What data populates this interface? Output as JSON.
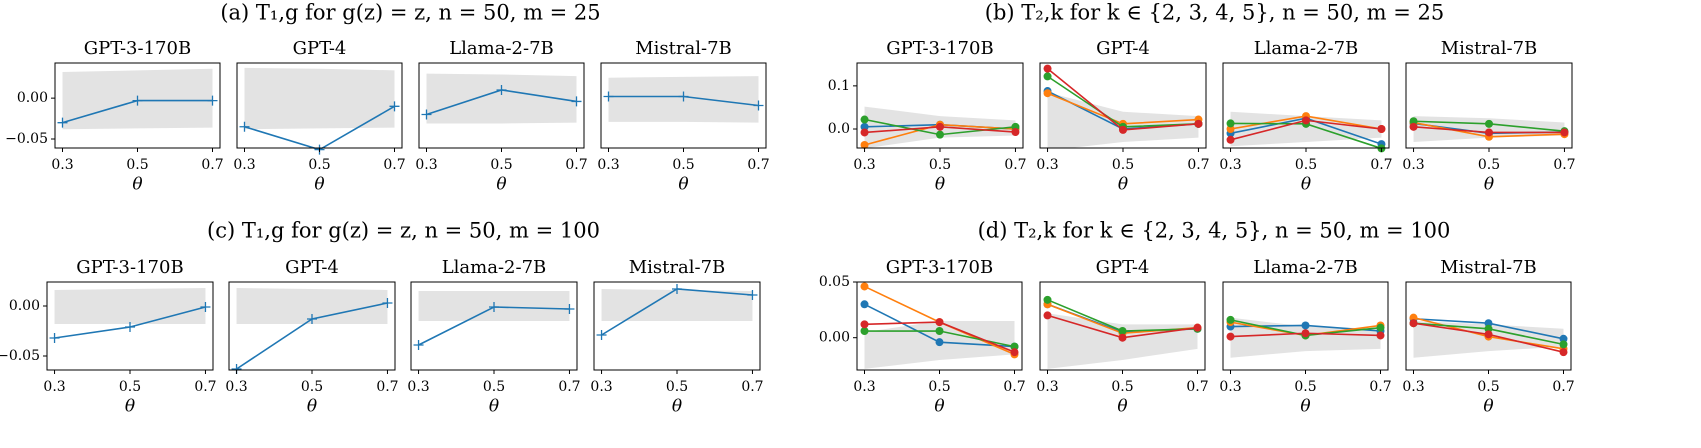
{
  "panel_titles": [
    "(a) T₁,g for g(z) = z, n = 50, m = 25",
    "(b) T₂,k for k ∈ {2, 3, 4, 5}, n = 50, m = 25",
    "(c) T₁,g for g(z) = z, n = 50, m = 100",
    "(d) T₂,k for k ∈ {2, 3, 4, 5}, n = 50, m = 100"
  ],
  "chart_data": [
    {
      "type": "line",
      "title": "GPT-3-170B",
      "marker": "+",
      "x": [
        0.3,
        0.5,
        0.7
      ],
      "xlim": [
        0.28,
        0.72
      ],
      "xticks": [
        0.3,
        0.5,
        0.7
      ],
      "xlabel": "θ",
      "ylim": [
        -0.061,
        0.043
      ],
      "yticks": [
        {
          "value": -0.05,
          "label": "−0.05"
        },
        {
          "value": 0,
          "label": "0.00"
        }
      ],
      "band_upper": [
        0.032,
        0.034,
        0.036
      ],
      "band_lower": [
        -0.038,
        -0.037,
        -0.036
      ],
      "series": [
        {
          "color": "#1f77b4",
          "values": [
            -0.03,
            -0.003,
            -0.003
          ]
        }
      ]
    },
    {
      "type": "line",
      "title": "GPT-4",
      "marker": "+",
      "x": [
        0.3,
        0.5,
        0.7
      ],
      "xlim": [
        0.28,
        0.72
      ],
      "ylim": [
        -0.061,
        0.043
      ],
      "xticks": [
        0.3,
        0.5,
        0.7
      ],
      "xlabel": "θ",
      "band_upper": [
        0.037,
        0.036,
        0.034
      ],
      "band_lower": [
        -0.038,
        -0.037,
        -0.036
      ],
      "series": [
        {
          "color": "#1f77b4",
          "values": [
            -0.035,
            -0.063,
            -0.01
          ]
        }
      ]
    },
    {
      "type": "line",
      "title": "Llama-2-7B",
      "marker": "+",
      "x": [
        0.3,
        0.5,
        0.7
      ],
      "xlim": [
        0.28,
        0.72
      ],
      "ylim": [
        -0.061,
        0.043
      ],
      "xticks": [
        0.3,
        0.5,
        0.7
      ],
      "xlabel": "θ",
      "band_upper": [
        0.03,
        0.029,
        0.027
      ],
      "band_lower": [
        -0.031,
        -0.031,
        -0.03
      ],
      "series": [
        {
          "color": "#1f77b4",
          "values": [
            -0.02,
            0.01,
            -0.004
          ]
        }
      ]
    },
    {
      "type": "line",
      "title": "Mistral-7B",
      "marker": "+",
      "x": [
        0.3,
        0.5,
        0.7
      ],
      "xlim": [
        0.28,
        0.72
      ],
      "ylim": [
        -0.061,
        0.043
      ],
      "xticks": [
        0.3,
        0.5,
        0.7
      ],
      "xlabel": "θ",
      "band_upper": [
        0.025,
        0.026,
        0.027
      ],
      "band_lower": [
        -0.029,
        -0.029,
        -0.03
      ],
      "series": [
        {
          "color": "#1f77b4",
          "values": [
            0.002,
            0.002,
            -0.009
          ]
        }
      ]
    },
    {
      "type": "line",
      "title": "GPT-3-170B",
      "marker": "o",
      "x": [
        0.3,
        0.5,
        0.7
      ],
      "xlim": [
        0.28,
        0.72
      ],
      "xticks": [
        0.3,
        0.5,
        0.7
      ],
      "xlabel": "θ",
      "ylim": [
        -0.044,
        0.153
      ],
      "yticks": [
        {
          "value": 0,
          "label": "0.0"
        },
        0.1
      ],
      "band_upper": [
        0.052,
        0.03,
        0.02
      ],
      "band_lower": [
        -0.045,
        -0.02,
        -0.015
      ],
      "series": [
        {
          "color": "#1f77b4",
          "values": [
            0.005,
            0.01,
            0.0
          ]
        },
        {
          "color": "#ff7f0e",
          "values": [
            -0.037,
            0.01,
            0.0
          ]
        },
        {
          "color": "#2ca02c",
          "values": [
            0.022,
            -0.013,
            0.005
          ]
        },
        {
          "color": "#d62728",
          "values": [
            -0.008,
            0.005,
            -0.007
          ]
        }
      ]
    },
    {
      "type": "line",
      "title": "GPT-4",
      "marker": "o",
      "x": [
        0.3,
        0.5,
        0.7
      ],
      "xlim": [
        0.28,
        0.72
      ],
      "xticks": [
        0.3,
        0.5,
        0.7
      ],
      "xlabel": "θ",
      "ylim": [
        -0.044,
        0.153
      ],
      "band_upper": [
        0.085,
        0.04,
        0.03
      ],
      "band_lower": [
        -0.05,
        -0.03,
        -0.02
      ],
      "series": [
        {
          "color": "#1f77b4",
          "values": [
            0.088,
            0.0,
            0.012
          ]
        },
        {
          "color": "#ff7f0e",
          "values": [
            0.083,
            0.012,
            0.022
          ]
        },
        {
          "color": "#2ca02c",
          "values": [
            0.122,
            0.005,
            0.012
          ]
        },
        {
          "color": "#d62728",
          "values": [
            0.14,
            -0.002,
            0.012
          ]
        }
      ]
    },
    {
      "type": "line",
      "title": "Llama-2-7B",
      "marker": "o",
      "x": [
        0.3,
        0.5,
        0.7
      ],
      "xlim": [
        0.28,
        0.72
      ],
      "xticks": [
        0.3,
        0.5,
        0.7
      ],
      "xlabel": "θ",
      "ylim": [
        -0.044,
        0.153
      ],
      "band_upper": [
        0.04,
        0.03,
        0.02
      ],
      "band_lower": [
        -0.04,
        -0.03,
        -0.02
      ],
      "series": [
        {
          "color": "#1f77b4",
          "values": [
            -0.01,
            0.025,
            -0.035
          ]
        },
        {
          "color": "#ff7f0e",
          "values": [
            0.0,
            0.03,
            0.0
          ]
        },
        {
          "color": "#2ca02c",
          "values": [
            0.013,
            0.012,
            -0.045
          ]
        },
        {
          "color": "#d62728",
          "values": [
            -0.025,
            0.02,
            0.0
          ]
        }
      ]
    },
    {
      "type": "line",
      "title": "Mistral-7B",
      "marker": "o",
      "x": [
        0.3,
        0.5,
        0.7
      ],
      "xlim": [
        0.28,
        0.72
      ],
      "xticks": [
        0.3,
        0.5,
        0.7
      ],
      "xlabel": "θ",
      "ylim": [
        -0.044,
        0.153
      ],
      "band_upper": [
        0.03,
        0.025,
        0.015
      ],
      "band_lower": [
        -0.03,
        -0.02,
        -0.015
      ],
      "series": [
        {
          "color": "#1f77b4",
          "values": [
            0.013,
            -0.01,
            -0.007
          ]
        },
        {
          "color": "#ff7f0e",
          "values": [
            0.015,
            -0.018,
            -0.012
          ]
        },
        {
          "color": "#2ca02c",
          "values": [
            0.018,
            0.012,
            -0.005
          ]
        },
        {
          "color": "#d62728",
          "values": [
            0.005,
            -0.008,
            -0.008
          ]
        }
      ]
    },
    {
      "type": "line",
      "title": "GPT-3-170B",
      "marker": "+",
      "x": [
        0.3,
        0.5,
        0.7
      ],
      "xlim": [
        0.28,
        0.72
      ],
      "xticks": [
        0.3,
        0.5,
        0.7
      ],
      "xlabel": "θ",
      "ylim": [
        -0.064,
        0.024
      ],
      "yticks": [
        {
          "value": -0.05,
          "label": "−0.05"
        },
        {
          "value": 0,
          "label": "0.00"
        }
      ],
      "band_upper": [
        0.016,
        0.017,
        0.018
      ],
      "band_lower": [
        -0.018,
        -0.018,
        -0.018
      ],
      "series": [
        {
          "color": "#1f77b4",
          "values": [
            -0.032,
            -0.021,
            -0.001
          ]
        }
      ]
    },
    {
      "type": "line",
      "title": "GPT-4",
      "marker": "+",
      "x": [
        0.3,
        0.5,
        0.7
      ],
      "xlim": [
        0.28,
        0.72
      ],
      "xticks": [
        0.3,
        0.5,
        0.7
      ],
      "xlabel": "θ",
      "ylim": [
        -0.064,
        0.024
      ],
      "band_upper": [
        0.018,
        0.017,
        0.016
      ],
      "band_lower": [
        -0.018,
        -0.018,
        -0.018
      ],
      "series": [
        {
          "color": "#1f77b4",
          "values": [
            -0.063,
            -0.013,
            0.003
          ]
        }
      ]
    },
    {
      "type": "line",
      "title": "Llama-2-7B",
      "marker": "+",
      "x": [
        0.3,
        0.5,
        0.7
      ],
      "xlim": [
        0.28,
        0.72
      ],
      "xticks": [
        0.3,
        0.5,
        0.7
      ],
      "xlabel": "θ",
      "ylim": [
        -0.064,
        0.024
      ],
      "band_upper": [
        0.015,
        0.015,
        0.015
      ],
      "band_lower": [
        -0.015,
        -0.015,
        -0.015
      ],
      "series": [
        {
          "color": "#1f77b4",
          "values": [
            -0.039,
            -0.001,
            -0.003
          ]
        }
      ]
    },
    {
      "type": "line",
      "title": "Mistral-7B",
      "marker": "+",
      "x": [
        0.3,
        0.5,
        0.7
      ],
      "xlim": [
        0.28,
        0.72
      ],
      "xticks": [
        0.3,
        0.5,
        0.7
      ],
      "xlabel": "θ",
      "ylim": [
        -0.064,
        0.024
      ],
      "band_upper": [
        0.017,
        0.016,
        0.015
      ],
      "band_lower": [
        -0.015,
        -0.015,
        -0.015
      ],
      "series": [
        {
          "color": "#1f77b4",
          "values": [
            -0.029,
            0.017,
            0.011
          ]
        }
      ]
    },
    {
      "type": "line",
      "title": "GPT-3-170B",
      "marker": "o",
      "x": [
        0.3,
        0.5,
        0.7
      ],
      "xlim": [
        0.28,
        0.72
      ],
      "xticks": [
        0.3,
        0.5,
        0.7
      ],
      "xlabel": "θ",
      "ylim": [
        -0.029,
        0.05
      ],
      "yticks": [
        {
          "value": 0,
          "label": "0.00"
        },
        0.05
      ],
      "band_upper": [
        0.005,
        0.015,
        0.015
      ],
      "band_lower": [
        -0.028,
        -0.02,
        -0.015
      ],
      "series": [
        {
          "color": "#1f77b4",
          "values": [
            0.03,
            -0.004,
            -0.008
          ]
        },
        {
          "color": "#ff7f0e",
          "values": [
            0.046,
            0.014,
            -0.015
          ]
        },
        {
          "color": "#2ca02c",
          "values": [
            0.006,
            0.006,
            -0.008
          ]
        },
        {
          "color": "#d62728",
          "values": [
            0.012,
            0.014,
            -0.013
          ]
        }
      ]
    },
    {
      "type": "line",
      "title": "GPT-4",
      "marker": "o",
      "x": [
        0.3,
        0.5,
        0.7
      ],
      "xlim": [
        0.28,
        0.72
      ],
      "xticks": [
        0.3,
        0.5,
        0.7
      ],
      "xlabel": "θ",
      "ylim": [
        -0.029,
        0.05
      ],
      "band_upper": [
        0.022,
        0.012,
        0.012
      ],
      "band_lower": [
        -0.028,
        -0.02,
        -0.01
      ],
      "series": [
        {
          "color": "#1f77b4",
          "values": [
            0.03,
            0.005,
            0.008
          ]
        },
        {
          "color": "#ff7f0e",
          "values": [
            0.03,
            0.004,
            0.009
          ]
        },
        {
          "color": "#2ca02c",
          "values": [
            0.034,
            0.006,
            0.008
          ]
        },
        {
          "color": "#d62728",
          "values": [
            0.02,
            0.0,
            0.009
          ]
        }
      ]
    },
    {
      "type": "line",
      "title": "Llama-2-7B",
      "marker": "o",
      "x": [
        0.3,
        0.5,
        0.7
      ],
      "xlim": [
        0.28,
        0.72
      ],
      "xticks": [
        0.3,
        0.5,
        0.7
      ],
      "xlabel": "θ",
      "ylim": [
        -0.029,
        0.05
      ],
      "band_upper": [
        0.018,
        0.01,
        0.008
      ],
      "band_lower": [
        -0.018,
        -0.012,
        -0.01
      ],
      "series": [
        {
          "color": "#1f77b4",
          "values": [
            0.01,
            0.011,
            0.006
          ]
        },
        {
          "color": "#ff7f0e",
          "values": [
            0.014,
            0.002,
            0.011
          ]
        },
        {
          "color": "#2ca02c",
          "values": [
            0.016,
            0.002,
            0.009
          ]
        },
        {
          "color": "#d62728",
          "values": [
            0.001,
            0.004,
            0.002
          ]
        }
      ]
    },
    {
      "type": "line",
      "title": "Mistral-7B",
      "marker": "o",
      "x": [
        0.3,
        0.5,
        0.7
      ],
      "xlim": [
        0.28,
        0.72
      ],
      "xticks": [
        0.3,
        0.5,
        0.7
      ],
      "xlabel": "θ",
      "ylim": [
        -0.029,
        0.05
      ],
      "band_upper": [
        0.015,
        0.012,
        0.008
      ],
      "band_lower": [
        -0.018,
        -0.012,
        -0.008
      ],
      "series": [
        {
          "color": "#1f77b4",
          "values": [
            0.017,
            0.013,
            -0.001
          ]
        },
        {
          "color": "#ff7f0e",
          "values": [
            0.018,
            0.001,
            -0.01
          ]
        },
        {
          "color": "#2ca02c",
          "values": [
            0.013,
            0.008,
            -0.006
          ]
        },
        {
          "color": "#d62728",
          "values": [
            0.013,
            0.003,
            -0.013
          ]
        }
      ]
    }
  ]
}
